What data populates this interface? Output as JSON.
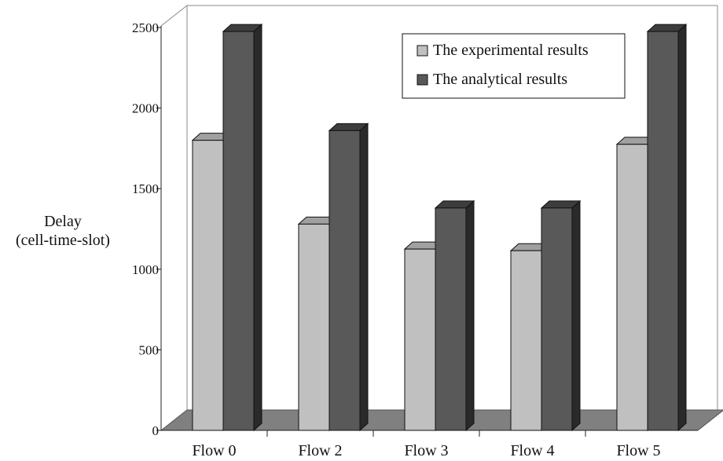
{
  "chart_data": {
    "type": "bar",
    "categories": [
      "Flow 0",
      "Flow 2",
      "Flow 3",
      "Flow 4",
      "Flow 5"
    ],
    "series": [
      {
        "name": "The experimental results",
        "values": [
          1800,
          1280,
          1125,
          1115,
          1775
        ],
        "color": "#c0c0c0"
      },
      {
        "name": "The analytical results",
        "values": [
          2475,
          1860,
          1380,
          1380,
          2475
        ],
        "color": "#595959"
      }
    ],
    "ylabel_lines": [
      "Delay",
      "(cell-time-slot)"
    ],
    "yticks": [
      0,
      500,
      1000,
      1500,
      2000,
      2500
    ],
    "ylim": [
      0,
      2500
    ],
    "grid": false,
    "three_d": true,
    "legend_position": "top-right"
  }
}
